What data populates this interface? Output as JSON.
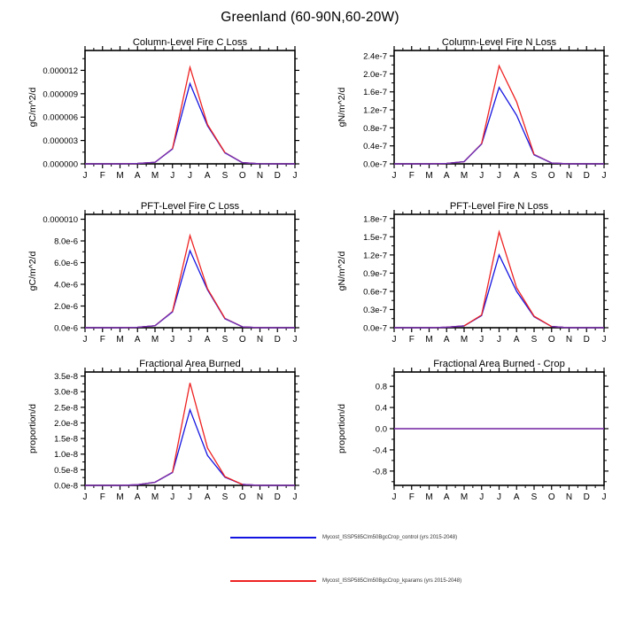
{
  "page_title": "Greenland (60-90N,60-20W)",
  "colors": {
    "control": "#1414e0",
    "kparams": "#ee2222",
    "overlap": "#7031b5",
    "axis": "#000000"
  },
  "legend": {
    "entries": [
      {
        "name": "control",
        "label": "Mycost_ISSP585Clm50BgcCrop_control (yrs 2015-2048)"
      },
      {
        "name": "kparams",
        "label": "Mycost_ISSP585Clm50BgcCrop_kparams (yrs 2015-2048)"
      }
    ]
  },
  "chart_data": [
    {
      "type": "line",
      "title": "Column-Level Fire C Loss",
      "ylabel": "gC/m^2/d",
      "categories": [
        "J",
        "F",
        "M",
        "A",
        "M",
        "J",
        "J",
        "A",
        "S",
        "O",
        "N",
        "D",
        "J"
      ],
      "ylim": [
        0,
        1.455e-05
      ],
      "minor_step": 1.5e-06,
      "yticks": [
        {
          "v": 0,
          "label": "0.000000"
        },
        {
          "v": 3e-06,
          "label": "0.000003"
        },
        {
          "v": 6e-06,
          "label": "0.000006"
        },
        {
          "v": 9e-06,
          "label": "0.000009"
        },
        {
          "v": 1.2e-05,
          "label": "0.000012"
        }
      ],
      "series": [
        {
          "name": "control",
          "values": [
            0,
            0,
            0,
            5e-08,
            2e-07,
            1.9e-06,
            1.03e-05,
            4.9e-06,
            1.4e-06,
            1.5e-07,
            1e-08,
            0,
            0
          ]
        },
        {
          "name": "kparams",
          "values": [
            0,
            0,
            0,
            5e-08,
            2e-07,
            1.95e-06,
            1.24e-05,
            5.05e-06,
            1.45e-06,
            1.5e-07,
            1e-08,
            0,
            0
          ]
        }
      ]
    },
    {
      "type": "line",
      "title": "Column-Level Fire N Loss",
      "ylabel": "gN/m^2/d",
      "categories": [
        "J",
        "F",
        "M",
        "A",
        "M",
        "J",
        "J",
        "A",
        "S",
        "O",
        "N",
        "D",
        "J"
      ],
      "ylim": [
        0,
        2.52e-07
      ],
      "minor_step": 2e-08,
      "yticks": [
        {
          "v": 0,
          "label": "0.0e-7"
        },
        {
          "v": 4e-08,
          "label": "0.4e-7"
        },
        {
          "v": 8e-08,
          "label": "0.8e-7"
        },
        {
          "v": 1.2e-07,
          "label": "1.2e-7"
        },
        {
          "v": 1.6e-07,
          "label": "1.6e-7"
        },
        {
          "v": 2e-07,
          "label": "2.0e-7"
        },
        {
          "v": 2.4e-07,
          "label": "2.4e-7"
        }
      ],
      "series": [
        {
          "name": "control",
          "values": [
            0,
            0,
            0,
            1e-09,
            5e-09,
            4.4e-08,
            1.7e-07,
            1.08e-07,
            2e-08,
            2e-09,
            0,
            0,
            0
          ]
        },
        {
          "name": "kparams",
          "values": [
            0,
            0,
            0,
            1e-09,
            5e-09,
            4.5e-08,
            2.18e-07,
            1.38e-07,
            2.1e-08,
            2e-09,
            0,
            0,
            0
          ]
        }
      ]
    },
    {
      "type": "line",
      "title": "PFT-Level Fire C Loss",
      "ylabel": "gC/m^2/d",
      "categories": [
        "J",
        "F",
        "M",
        "A",
        "M",
        "J",
        "J",
        "A",
        "S",
        "O",
        "N",
        "D",
        "J"
      ],
      "ylim": [
        0,
        1.045e-05
      ],
      "minor_step": 1e-06,
      "yticks": [
        {
          "v": 0,
          "label": "0.0e-6"
        },
        {
          "v": 2e-06,
          "label": "2.0e-6"
        },
        {
          "v": 4e-06,
          "label": "4.0e-6"
        },
        {
          "v": 6e-06,
          "label": "6.0e-6"
        },
        {
          "v": 8e-06,
          "label": "8.0e-6"
        },
        {
          "v": 1e-05,
          "label": "0.000010"
        }
      ],
      "series": [
        {
          "name": "control",
          "values": [
            0,
            0,
            0,
            4e-08,
            1.8e-07,
            1.45e-06,
            7.1e-06,
            3.5e-06,
            8.2e-07,
            8e-08,
            0,
            0,
            0
          ]
        },
        {
          "name": "kparams",
          "values": [
            0,
            0,
            0,
            4e-08,
            1.8e-07,
            1.5e-06,
            8.5e-06,
            3.6e-06,
            8.6e-07,
            8e-08,
            0,
            0,
            0
          ]
        }
      ]
    },
    {
      "type": "line",
      "title": "PFT-Level Fire N Loss",
      "ylabel": "gN/m^2/d",
      "categories": [
        "J",
        "F",
        "M",
        "A",
        "M",
        "J",
        "J",
        "A",
        "S",
        "O",
        "N",
        "D",
        "J"
      ],
      "ylim": [
        0,
        1.87e-07
      ],
      "minor_step": 1.5e-08,
      "yticks": [
        {
          "v": 0,
          "label": "0.0e-7"
        },
        {
          "v": 3e-08,
          "label": "0.3e-7"
        },
        {
          "v": 6e-08,
          "label": "0.6e-7"
        },
        {
          "v": 9e-08,
          "label": "0.9e-7"
        },
        {
          "v": 1.2e-07,
          "label": "1.2e-7"
        },
        {
          "v": 1.5e-07,
          "label": "1.5e-7"
        },
        {
          "v": 1.8e-07,
          "label": "1.8e-7"
        }
      ],
      "series": [
        {
          "name": "control",
          "values": [
            0,
            0,
            0,
            8e-10,
            3e-09,
            2e-08,
            1.2e-07,
            6e-08,
            1.8e-08,
            2e-09,
            0,
            0,
            0
          ]
        },
        {
          "name": "kparams",
          "values": [
            0,
            0,
            0,
            8e-10,
            3e-09,
            2.1e-08,
            1.58e-07,
            6.6e-08,
            1.9e-08,
            2e-09,
            0,
            0,
            0
          ]
        }
      ]
    },
    {
      "type": "line",
      "title": "Fractional Area Burned",
      "ylabel": "proportion/d",
      "categories": [
        "J",
        "F",
        "M",
        "A",
        "M",
        "J",
        "J",
        "A",
        "S",
        "O",
        "N",
        "D",
        "J"
      ],
      "ylim": [
        0,
        3.63e-08
      ],
      "minor_step": 2.5e-09,
      "yticks": [
        {
          "v": 0,
          "label": "0.0e-8"
        },
        {
          "v": 5e-09,
          "label": "0.5e-8"
        },
        {
          "v": 1e-08,
          "label": "1.0e-8"
        },
        {
          "v": 1.5e-08,
          "label": "1.5e-8"
        },
        {
          "v": 2e-08,
          "label": "2.0e-8"
        },
        {
          "v": 2.5e-08,
          "label": "2.5e-8"
        },
        {
          "v": 3e-08,
          "label": "3.0e-8"
        },
        {
          "v": 3.5e-08,
          "label": "3.5e-8"
        }
      ],
      "series": [
        {
          "name": "control",
          "values": [
            0,
            0,
            0,
            2e-10,
            1e-09,
            4.1e-09,
            2.42e-08,
            9.6e-09,
            2.6e-09,
            3e-10,
            0,
            0,
            0
          ]
        },
        {
          "name": "kparams",
          "values": [
            0,
            0,
            0,
            2e-10,
            1e-09,
            4.2e-09,
            3.28e-08,
            1.2e-08,
            2.8e-09,
            3e-10,
            0,
            0,
            0
          ]
        }
      ]
    },
    {
      "type": "line",
      "title": "Fractional Area Burned - Crop",
      "ylabel": "proportion/d",
      "categories": [
        "J",
        "F",
        "M",
        "A",
        "M",
        "J",
        "J",
        "A",
        "S",
        "O",
        "N",
        "D",
        "J"
      ],
      "ylim": [
        -1.07,
        1.07
      ],
      "minor_step": 0.2,
      "yticks": [
        {
          "v": -0.8,
          "label": "-0.8"
        },
        {
          "v": -0.4,
          "label": "-0.4"
        },
        {
          "v": 0,
          "label": "0.0"
        },
        {
          "v": 0.4,
          "label": "0.4"
        },
        {
          "v": 0.8,
          "label": "0.8"
        }
      ],
      "series": [
        {
          "name": "control",
          "values": [
            0,
            0,
            0,
            0,
            0,
            0,
            0,
            0,
            0,
            0,
            0,
            0,
            0
          ]
        },
        {
          "name": "kparams",
          "values": [
            0,
            0,
            0,
            0,
            0,
            0,
            0,
            0,
            0,
            0,
            0,
            0,
            0
          ]
        }
      ]
    }
  ]
}
